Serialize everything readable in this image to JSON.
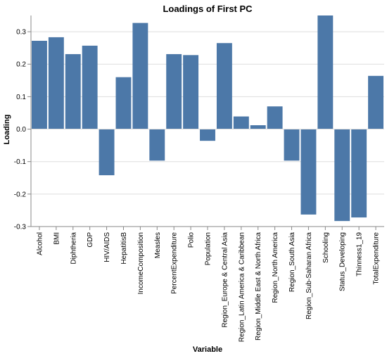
{
  "chart_data": {
    "type": "bar",
    "title": "Loadings of First PC",
    "xlabel": "Variable",
    "ylabel": "Loading",
    "ylim": [
      -0.3,
      0.35
    ],
    "yticks": [
      "0.3",
      "0.2",
      "0.1",
      "0.0",
      "-0.1",
      "-0.2",
      "-0.3"
    ],
    "grid": true,
    "bar_color": "#4c78a8",
    "categories": [
      "Alcohol",
      "BMI",
      "Diphtheria",
      "GDP",
      "HIV/AIDS",
      "HepatitisB",
      "IncomeComposition",
      "Measles",
      "PercentExpenditure",
      "Polio",
      "Population",
      "Region_Europe & Central Asia",
      "Region_Latin America & Caribbean",
      "Region_Middle East & North Africa",
      "Region_North America",
      "Region_South Asia",
      "Region_Sub-Saharan Africa",
      "Schooling",
      "Status_Developing",
      "Thinness1_19",
      "TotalExpenditure"
    ],
    "values": [
      0.272,
      0.283,
      0.231,
      0.257,
      -0.142,
      0.16,
      0.327,
      -0.097,
      0.231,
      0.228,
      -0.036,
      0.265,
      0.039,
      0.012,
      0.07,
      -0.097,
      -0.263,
      0.35,
      -0.283,
      -0.272,
      0.164
    ]
  }
}
